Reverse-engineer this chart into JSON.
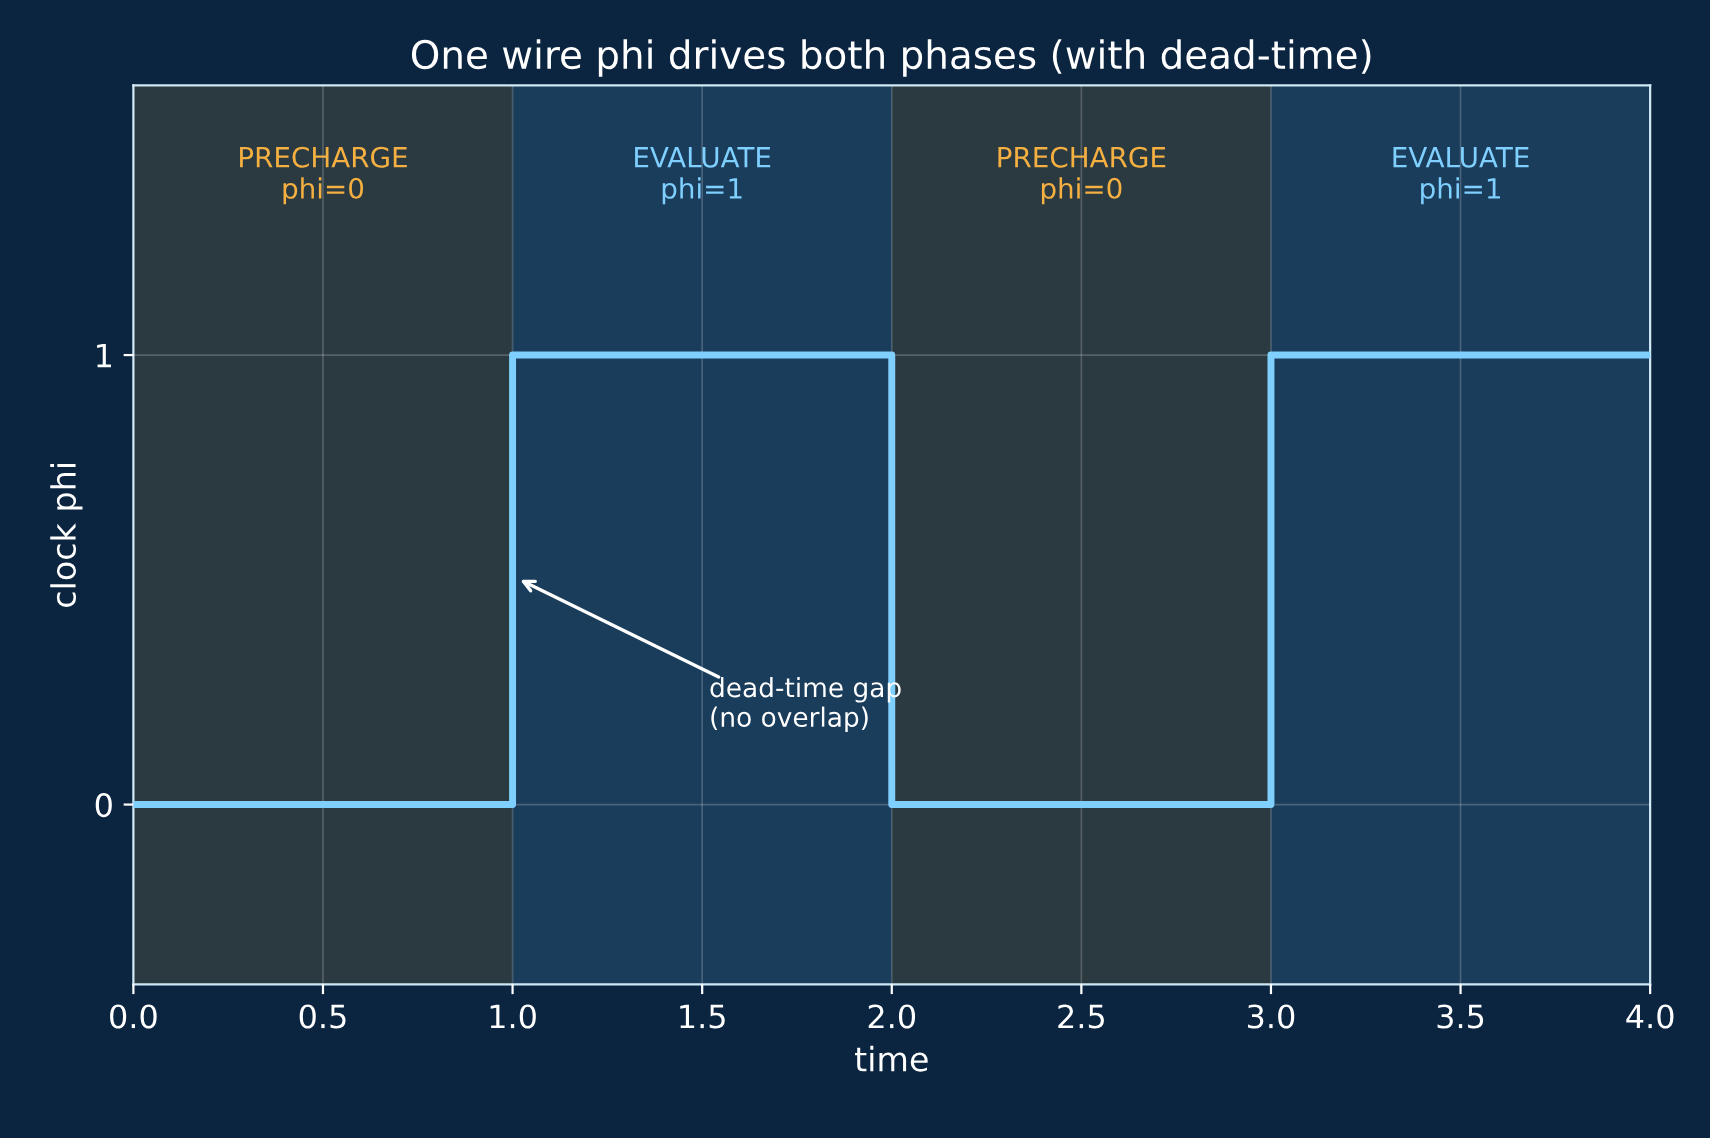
{
  "chart_data": {
    "type": "step",
    "title": "One wire phi drives both phases (with dead-time)",
    "xlabel": "time",
    "ylabel": "clock phi",
    "x": [
      0,
      1,
      2,
      3,
      4
    ],
    "series": [
      {
        "color": "#7fd0ff",
        "values": [
          0,
          1,
          0,
          1,
          1
        ]
      }
    ],
    "xlim": [
      0,
      4
    ],
    "xticks": [
      {
        "value": 0,
        "label": "0.0"
      },
      {
        "value": 0.5,
        "label": "0.5"
      },
      {
        "value": 1,
        "label": "1.0"
      },
      {
        "value": 1.5,
        "label": "1.5"
      },
      {
        "value": 2,
        "label": "2.0"
      },
      {
        "value": 2.5,
        "label": "2.5"
      },
      {
        "value": 3,
        "label": "3.0"
      },
      {
        "value": 3.5,
        "label": "3.5"
      },
      {
        "value": 4,
        "label": "4.0"
      }
    ],
    "ylim": [
      -0.4,
      1.6
    ],
    "yticks": [
      0,
      1
    ],
    "bands": [
      {
        "axis": "x",
        "from": 0,
        "to": 1,
        "label": "PRECHARGE\nphi=0",
        "color": "#2b3a40"
      },
      {
        "axis": "x",
        "from": 1,
        "to": 2,
        "label": "EVALUATE\nphi=1",
        "color": "#1b3d5c"
      },
      {
        "axis": "x",
        "from": 2,
        "to": 3,
        "label": "PRECHARGE\nphi=0",
        "color": "#2b3a40"
      },
      {
        "axis": "x",
        "from": 3,
        "to": 4,
        "label": "EVALUATE\nphi=1",
        "color": "#1b3d5c"
      }
    ],
    "annotations": [
      {
        "text": "dead-time gap\n(no overlap)",
        "x": 1.02,
        "y": 0.5
      }
    ],
    "grid": true,
    "line_style": "solid",
    "marker": "none"
  }
}
